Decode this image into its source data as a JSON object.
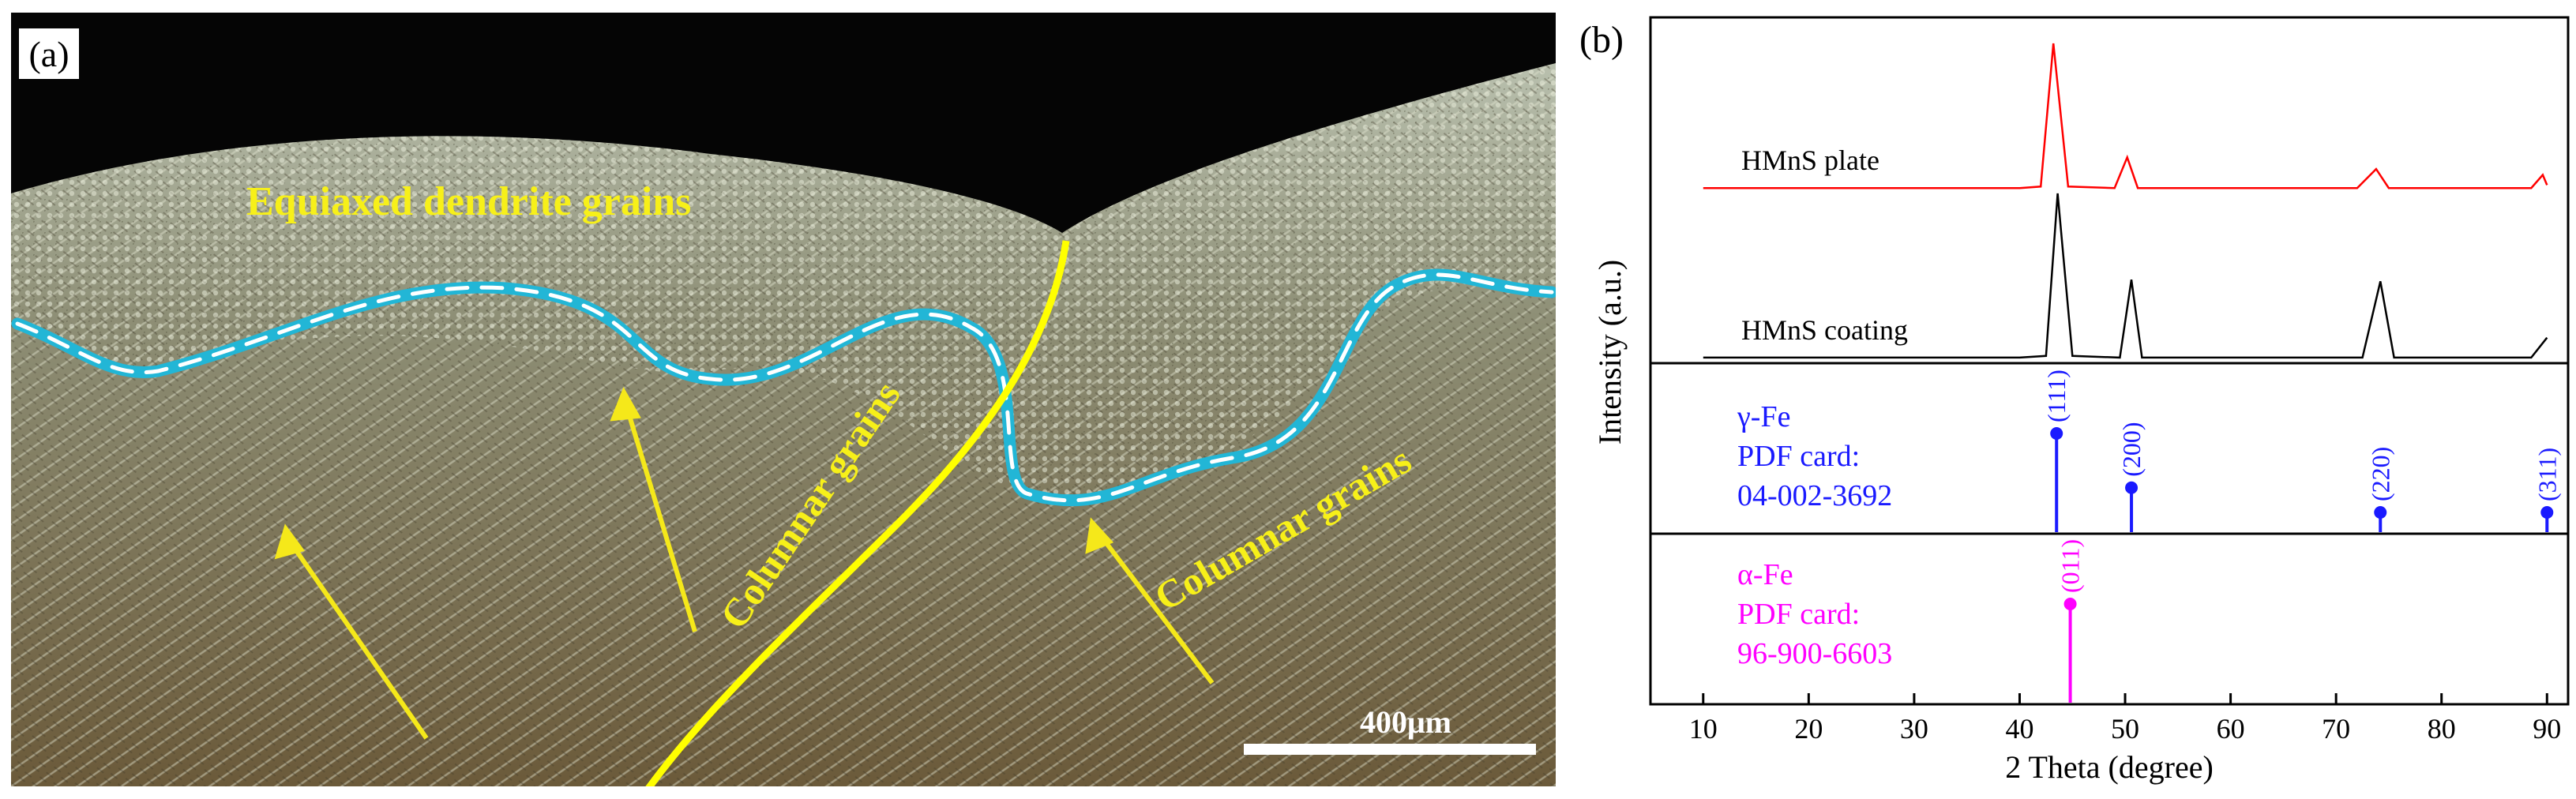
{
  "panel_a": {
    "label": "(a)",
    "annotations": {
      "equiaxed": "Equiaxed dendrite grains",
      "columnar_left": "Columnar  grains",
      "columnar_right": "Columnar  grains"
    },
    "scale_bar_label": "400μm"
  },
  "panel_b": {
    "label": "(b)",
    "colors": {
      "plate": "#ff0000",
      "coating": "#000000",
      "gamma": "#1a1aff",
      "alpha": "#ff00ff"
    }
  },
  "chart_data": {
    "type": "line",
    "xlabel": "2 Theta (degree)",
    "ylabel": "Intensity (a.u.)",
    "xlim": [
      5,
      92
    ],
    "xticks": [
      10,
      20,
      30,
      40,
      50,
      60,
      70,
      80,
      90
    ],
    "series": [
      {
        "name": "HMnS plate",
        "points": [
          [
            10,
            0.01
          ],
          [
            20,
            0.01
          ],
          [
            30,
            0.01
          ],
          [
            40,
            0.01
          ],
          [
            42,
            0.02
          ],
          [
            43.2,
            1.0
          ],
          [
            44.6,
            0.02
          ],
          [
            49,
            0.01
          ],
          [
            50.2,
            0.22
          ],
          [
            51.2,
            0.01
          ],
          [
            72,
            0.01
          ],
          [
            73.8,
            0.14
          ],
          [
            75,
            0.01
          ],
          [
            88.5,
            0.01
          ],
          [
            89.6,
            0.1
          ],
          [
            90,
            0.03
          ]
        ]
      },
      {
        "name": "HMnS coating",
        "points": [
          [
            10,
            0.01
          ],
          [
            20,
            0.01
          ],
          [
            30,
            0.01
          ],
          [
            40,
            0.01
          ],
          [
            42.5,
            0.02
          ],
          [
            43.6,
            1.0
          ],
          [
            45,
            0.02
          ],
          [
            49.5,
            0.01
          ],
          [
            50.6,
            0.48
          ],
          [
            51.6,
            0.01
          ],
          [
            72.5,
            0.01
          ],
          [
            74.2,
            0.47
          ],
          [
            75.5,
            0.01
          ],
          [
            88.5,
            0.01
          ],
          [
            90,
            0.13
          ]
        ]
      }
    ],
    "references": [
      {
        "phase": "γ-Fe",
        "card_label": "PDF card:",
        "card": "04-002-3692",
        "peaks": [
          {
            "hkl": "(111)",
            "two_theta": 43.5,
            "intensity": 1.0
          },
          {
            "hkl": "(200)",
            "two_theta": 50.6,
            "intensity": 0.45
          },
          {
            "hkl": "(220)",
            "two_theta": 74.2,
            "intensity": 0.2
          },
          {
            "hkl": "(311)",
            "two_theta": 90.0,
            "intensity": 0.2
          }
        ]
      },
      {
        "phase": "α-Fe",
        "card_label": "PDF card:",
        "card": "96-900-6603",
        "peaks": [
          {
            "hkl": "(011)",
            "two_theta": 44.8,
            "intensity": 1.0
          }
        ]
      }
    ]
  }
}
